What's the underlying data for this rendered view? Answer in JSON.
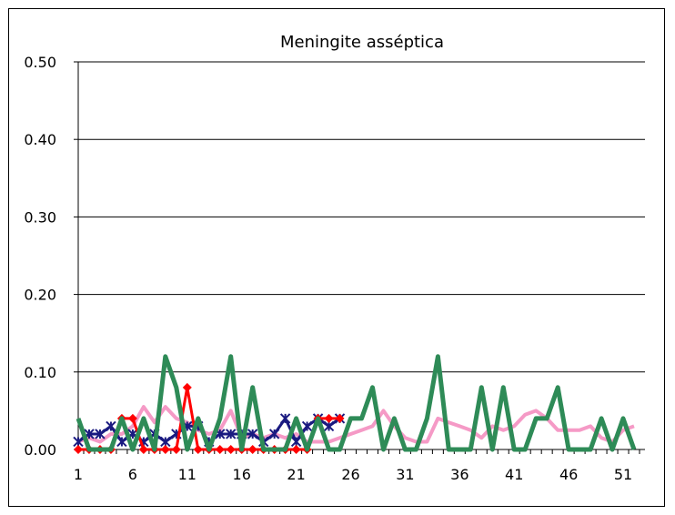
{
  "chart_data": {
    "type": "line",
    "title": "Meningite asséptica",
    "xlabel": "",
    "ylabel": "",
    "ylim": [
      0,
      0.5
    ],
    "yticks": [
      "0.00",
      "0.10",
      "0.20",
      "0.30",
      "0.40",
      "0.50"
    ],
    "xlim": [
      1,
      53
    ],
    "xticks": [
      "1",
      "6",
      "11",
      "16",
      "21",
      "26",
      "31",
      "36",
      "41",
      "46",
      "51"
    ],
    "grid": "horizontal",
    "legend": "none",
    "series": [
      {
        "color": "#f59ac6",
        "marker": "none",
        "x": [
          1,
          2,
          3,
          4,
          5,
          6,
          7,
          8,
          9,
          10,
          11,
          12,
          13,
          14,
          15,
          16,
          17,
          18,
          19,
          20,
          21,
          22,
          23,
          24,
          25,
          26,
          27,
          28,
          29,
          30,
          31,
          32,
          33,
          34,
          35,
          36,
          37,
          38,
          39,
          40,
          41,
          42,
          43,
          44,
          45,
          46,
          47,
          48,
          49,
          50,
          51,
          52
        ],
        "y": [
          0.01,
          0.015,
          0.01,
          0.02,
          0.02,
          0.03,
          0.055,
          0.035,
          0.055,
          0.04,
          0.035,
          0.025,
          0.02,
          0.025,
          0.05,
          0.015,
          0.02,
          0.015,
          0.02,
          0.015,
          0.02,
          0.01,
          0.01,
          0.01,
          0.015,
          0.02,
          0.025,
          0.03,
          0.05,
          0.03,
          0.015,
          0.01,
          0.01,
          0.04,
          0.035,
          0.03,
          0.025,
          0.015,
          0.03,
          0.025,
          0.03,
          0.045,
          0.05,
          0.04,
          0.025,
          0.025,
          0.025,
          0.03,
          0.015,
          0.01,
          0.025,
          0.03
        ]
      },
      {
        "color": "#1a1a80",
        "marker": "star",
        "x": [
          1,
          2,
          3,
          4,
          5,
          6,
          7,
          8,
          9,
          10,
          11,
          12,
          13,
          14,
          15,
          16,
          17,
          18,
          19,
          20,
          21,
          22,
          23,
          24,
          25
        ],
        "y": [
          0.01,
          0.02,
          0.02,
          0.03,
          0.01,
          0.02,
          0.01,
          0.02,
          0.01,
          0.02,
          0.03,
          0.03,
          0.01,
          0.02,
          0.02,
          0.02,
          0.02,
          0.01,
          0.02,
          0.04,
          0.01,
          0.03,
          0.04,
          0.03,
          0.04
        ]
      },
      {
        "color": "#ff0000",
        "marker": "diamond",
        "x": [
          1,
          2,
          3,
          4,
          5,
          6,
          7,
          8,
          9,
          10,
          11,
          12,
          13,
          14,
          15,
          16,
          17,
          18,
          19,
          20,
          21,
          22,
          23,
          24,
          25
        ],
        "y": [
          0,
          0,
          0,
          0,
          0.04,
          0.04,
          0,
          0,
          0,
          0,
          0.08,
          0,
          0,
          0,
          0,
          0,
          0,
          0,
          0,
          0,
          0,
          0,
          0.04,
          0.04,
          0.04
        ]
      },
      {
        "color": "#2e8b57",
        "marker": "none",
        "x": [
          1,
          2,
          3,
          4,
          5,
          6,
          7,
          8,
          9,
          10,
          11,
          12,
          13,
          14,
          15,
          16,
          17,
          18,
          19,
          20,
          21,
          22,
          23,
          24,
          25,
          26,
          27,
          28,
          29,
          30,
          31,
          32,
          33,
          34,
          35,
          36,
          37,
          38,
          39,
          40,
          41,
          42,
          43,
          44,
          45,
          46,
          47,
          48,
          49,
          50,
          51,
          52
        ],
        "y": [
          0.04,
          0,
          0,
          0,
          0.04,
          0,
          0.04,
          0,
          0.12,
          0.08,
          0,
          0.04,
          0,
          0.04,
          0.12,
          0,
          0.08,
          0,
          0,
          0,
          0.04,
          0,
          0.04,
          0,
          0,
          0.04,
          0.04,
          0.08,
          0,
          0.04,
          0,
          0,
          0.04,
          0.12,
          0,
          0,
          0,
          0.08,
          0,
          0.08,
          0,
          0,
          0.04,
          0.04,
          0.08,
          0,
          0,
          0,
          0.04,
          0,
          0.04,
          0
        ]
      }
    ]
  }
}
